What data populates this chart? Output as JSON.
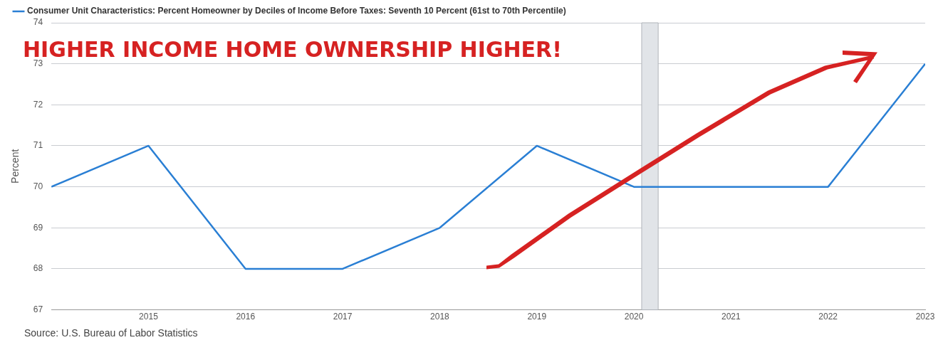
{
  "chart_data": {
    "type": "line",
    "ylabel": "Percent",
    "x": [
      2014,
      2015,
      2016,
      2017,
      2018,
      2019,
      2020,
      2021,
      2022,
      2023
    ],
    "series": [
      {
        "name": "Consumer Unit Characteristics: Percent Homeowner by Deciles of Income Before Taxes: Seventh 10 Percent (61st to 70th Percentile)",
        "color": "#2a7fd4",
        "values": [
          70,
          71,
          68,
          68,
          69,
          71,
          70,
          70,
          70,
          73
        ]
      }
    ],
    "xlim": [
      2014,
      2023
    ],
    "xticks": [
      2015,
      2016,
      2017,
      2018,
      2019,
      2020,
      2021,
      2022,
      2023
    ],
    "ylim": [
      67,
      74
    ],
    "yticks": [
      67,
      68,
      69,
      70,
      71,
      72,
      73,
      74
    ],
    "bands": [
      {
        "axis": "x",
        "from": 2020.08,
        "to": 2020.25,
        "color": "#e1e4e8"
      }
    ],
    "annotations": [
      "HIGHER INCOME HOME OWNERSHIP HIGHER!",
      "Source: U.S. Bureau of Labor Statistics"
    ],
    "grid": "y",
    "legend": "top left",
    "marker": "none",
    "line_style": "solid"
  }
}
